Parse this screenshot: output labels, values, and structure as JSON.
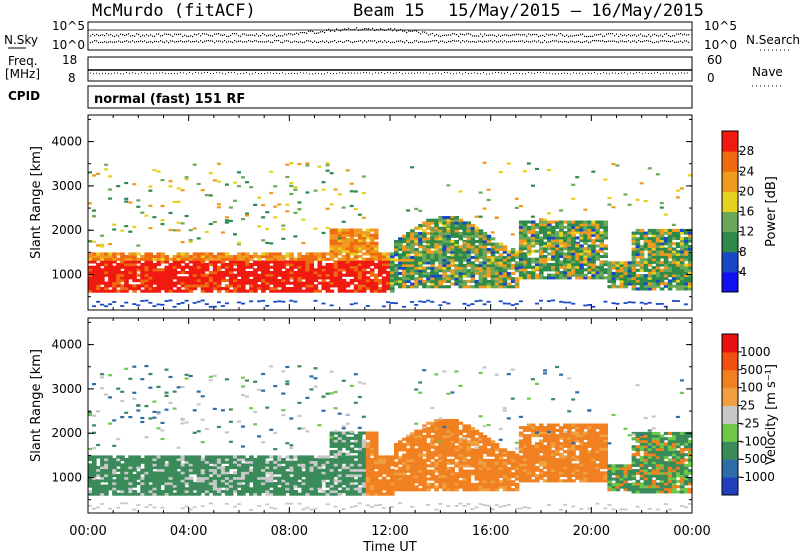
{
  "header": {
    "station": "McMurdo (fitACF)",
    "beam": "Beam 15",
    "dates": "15/May/2015 – 16/May/2015"
  },
  "top_panels": {
    "nsky_label": "N.Sky",
    "nsky_ticks": [
      "10^5",
      "10^0"
    ],
    "nsearch_label": "N.Search",
    "nsearch_ticks": [
      "10^5",
      "10^0"
    ],
    "freq_label": "Freq.",
    "freq_unit": "[MHz]",
    "freq_ticks": [
      "18",
      "8"
    ],
    "nave_label": "Nave",
    "nave_ticks": [
      "60",
      "0"
    ],
    "cpid_label": "CPID",
    "cpid_value": "normal (fast) 151 RF"
  },
  "chart_data": [
    {
      "type": "heatmap",
      "panel": "power",
      "ylabel": "Slant Range [km]",
      "yticks": [
        "1000",
        "2000",
        "3000",
        "4000"
      ],
      "ylim": [
        200,
        4600
      ],
      "x_ticks": [
        "00:00",
        "04:00",
        "08:00",
        "12:00",
        "16:00",
        "20:00",
        "00:00"
      ],
      "xlim_hours": [
        0,
        24
      ],
      "colorbar": {
        "label": "Power [dB]",
        "ticks": [
          "4",
          "8",
          "12",
          "16",
          "20",
          "24",
          "28"
        ],
        "colors": [
          "#1010f0",
          "#1848c8",
          "#2e8a4a",
          "#6aa85a",
          "#e8d020",
          "#f09a20",
          "#f06a10",
          "#f01a10"
        ]
      }
    },
    {
      "type": "heatmap",
      "panel": "velocity",
      "ylabel": "Slant Range [km]",
      "yticks": [
        "1000",
        "2000",
        "3000",
        "4000"
      ],
      "ylim": [
        200,
        4600
      ],
      "x_ticks": [
        "00:00",
        "04:00",
        "08:00",
        "12:00",
        "16:00",
        "20:00",
        "00:00"
      ],
      "xlabel": "Time UT",
      "xlim_hours": [
        0,
        24
      ],
      "colorbar": {
        "label": "Velocity [m s⁻¹]",
        "ticks": [
          "1000",
          "500",
          "100",
          "25",
          "-25",
          "-100",
          "-500",
          "-1000"
        ],
        "colors": [
          "#2040c0",
          "#2e6ea8",
          "#3a8a5a",
          "#6ec84a",
          "#c8c8c8",
          "#f0a040",
          "#f08020",
          "#f05010",
          "#e81010"
        ]
      }
    }
  ]
}
